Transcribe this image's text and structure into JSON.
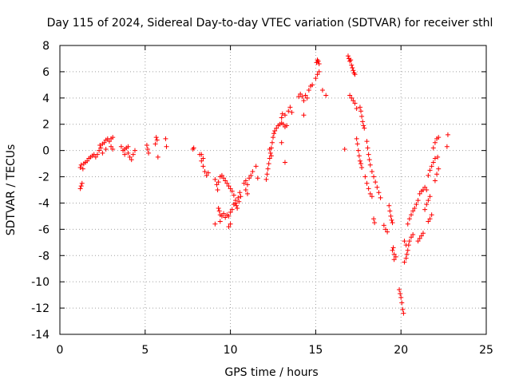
{
  "chart_data": {
    "type": "scatter",
    "title": "Day 115 of 2024, Sidereal Day-to-day VTEC variation (SDTVAR) for receiver sthl",
    "xlabel": "GPS time / hours",
    "ylabel": "SDTVAR / TECUs",
    "xlim": [
      0,
      25
    ],
    "ylim": [
      -14,
      8
    ],
    "xticks": [
      0,
      5,
      10,
      15,
      20,
      25
    ],
    "yticks": [
      -14,
      -12,
      -10,
      -8,
      -6,
      -4,
      -2,
      0,
      2,
      4,
      6,
      8
    ],
    "xtick_labels": [
      "0",
      "5",
      "10",
      "15",
      "20",
      "25"
    ],
    "ytick_labels": [
      "-14",
      "-12",
      "-10",
      "-8",
      "-6",
      "-4",
      "-2",
      "0",
      "2",
      "4",
      "6",
      "8"
    ],
    "grid": true,
    "marker": "+",
    "marker_color": "#ff0000",
    "series": [
      {
        "name": "SDTVAR",
        "points": [
          [
            1.2,
            -2.9
          ],
          [
            1.25,
            -2.7
          ],
          [
            1.3,
            -2.5
          ],
          [
            1.2,
            -1.3
          ],
          [
            1.25,
            -1.1
          ],
          [
            1.35,
            -1.4
          ],
          [
            1.4,
            -1.0
          ],
          [
            1.5,
            -0.9
          ],
          [
            1.6,
            -0.8
          ],
          [
            1.7,
            -0.6
          ],
          [
            1.8,
            -0.5
          ],
          [
            1.9,
            -0.4
          ],
          [
            2.0,
            -0.3
          ],
          [
            2.1,
            -0.5
          ],
          [
            2.2,
            -0.3
          ],
          [
            2.3,
            0.0
          ],
          [
            2.35,
            0.4
          ],
          [
            2.4,
            0.2
          ],
          [
            2.5,
            0.5
          ],
          [
            2.6,
            0.6
          ],
          [
            2.7,
            0.8
          ],
          [
            2.8,
            0.9
          ],
          [
            2.9,
            0.7
          ],
          [
            3.0,
            0.9
          ],
          [
            3.1,
            1.0
          ],
          [
            3.0,
            0.3
          ],
          [
            3.1,
            0.1
          ],
          [
            2.5,
            -0.2
          ],
          [
            2.7,
            0.1
          ],
          [
            3.6,
            0.3
          ],
          [
            3.7,
            0.0
          ],
          [
            3.8,
            -0.3
          ],
          [
            3.9,
            0.2
          ],
          [
            4.0,
            -0.2
          ],
          [
            4.1,
            -0.5
          ],
          [
            4.2,
            -0.7
          ],
          [
            4.3,
            -0.3
          ],
          [
            4.4,
            0.0
          ],
          [
            3.8,
            0.1
          ],
          [
            4.0,
            0.3
          ],
          [
            5.1,
            0.4
          ],
          [
            5.15,
            0.1
          ],
          [
            5.2,
            -0.2
          ],
          [
            5.6,
            0.5
          ],
          [
            5.65,
            1.0
          ],
          [
            5.7,
            0.8
          ],
          [
            5.75,
            -0.5
          ],
          [
            6.2,
            0.9
          ],
          [
            6.25,
            0.3
          ],
          [
            7.8,
            0.1
          ],
          [
            7.85,
            0.2
          ],
          [
            8.2,
            -0.3
          ],
          [
            8.3,
            -0.8
          ],
          [
            8.4,
            -1.2
          ],
          [
            8.5,
            -1.6
          ],
          [
            8.6,
            -1.9
          ],
          [
            8.7,
            -1.7
          ],
          [
            8.3,
            -0.3
          ],
          [
            8.4,
            -0.6
          ],
          [
            9.1,
            -2.2
          ],
          [
            9.2,
            -2.6
          ],
          [
            9.25,
            -3.0
          ],
          [
            9.3,
            -2.4
          ],
          [
            9.4,
            -2.0
          ],
          [
            9.5,
            -1.9
          ],
          [
            9.6,
            -2.1
          ],
          [
            9.7,
            -2.3
          ],
          [
            9.8,
            -2.5
          ],
          [
            9.9,
            -2.7
          ],
          [
            10.0,
            -2.9
          ],
          [
            10.1,
            -3.1
          ],
          [
            10.2,
            -3.4
          ],
          [
            10.3,
            -3.8
          ],
          [
            10.35,
            -4.2
          ],
          [
            10.4,
            -4.4
          ],
          [
            10.5,
            -3.9
          ],
          [
            10.6,
            -3.5
          ],
          [
            10.55,
            -3.2
          ],
          [
            10.45,
            -3.6
          ],
          [
            9.3,
            -4.4
          ],
          [
            9.35,
            -4.6
          ],
          [
            9.4,
            -4.9
          ],
          [
            9.5,
            -5.0
          ],
          [
            9.6,
            -4.8
          ],
          [
            9.7,
            -5.1
          ],
          [
            9.8,
            -4.9
          ],
          [
            9.9,
            -5.0
          ],
          [
            10.0,
            -4.7
          ],
          [
            10.1,
            -4.5
          ],
          [
            9.1,
            -5.6
          ],
          [
            9.4,
            -5.4
          ],
          [
            9.9,
            -5.8
          ],
          [
            10.0,
            -5.6
          ],
          [
            10.2,
            -4.1
          ],
          [
            10.3,
            -4.0
          ],
          [
            10.8,
            -2.5
          ],
          [
            10.9,
            -2.3
          ],
          [
            11.0,
            -2.6
          ],
          [
            11.1,
            -2.1
          ],
          [
            11.2,
            -1.9
          ],
          [
            11.3,
            -1.6
          ],
          [
            11.5,
            -1.2
          ],
          [
            11.6,
            -2.1
          ],
          [
            10.9,
            -3.0
          ],
          [
            11.0,
            -3.3
          ],
          [
            12.1,
            -2.2
          ],
          [
            12.15,
            -1.8
          ],
          [
            12.2,
            -1.4
          ],
          [
            12.25,
            -1.0
          ],
          [
            12.3,
            -0.6
          ],
          [
            12.35,
            -0.2
          ],
          [
            12.4,
            0.2
          ],
          [
            12.45,
            0.6
          ],
          [
            12.5,
            1.0
          ],
          [
            12.55,
            1.3
          ],
          [
            12.6,
            1.5
          ],
          [
            12.7,
            1.7
          ],
          [
            12.8,
            1.9
          ],
          [
            12.9,
            2.0
          ],
          [
            13.0,
            2.1
          ],
          [
            13.1,
            2.0
          ],
          [
            13.2,
            1.8
          ],
          [
            13.3,
            1.9
          ],
          [
            12.3,
            0.1
          ],
          [
            12.4,
            -0.4
          ],
          [
            13.0,
            2.5
          ],
          [
            13.05,
            2.8
          ],
          [
            13.2,
            2.7
          ],
          [
            13.4,
            3.0
          ],
          [
            13.5,
            3.3
          ],
          [
            13.6,
            2.9
          ],
          [
            13.2,
            -0.9
          ],
          [
            13.0,
            0.6
          ],
          [
            14.0,
            4.1
          ],
          [
            14.1,
            4.3
          ],
          [
            14.2,
            4.1
          ],
          [
            14.3,
            3.8
          ],
          [
            14.4,
            4.2
          ],
          [
            14.5,
            4.0
          ],
          [
            14.6,
            4.6
          ],
          [
            14.7,
            4.9
          ],
          [
            14.8,
            5.0
          ],
          [
            14.3,
            2.7
          ],
          [
            15.0,
            5.5
          ],
          [
            15.1,
            5.8
          ],
          [
            15.2,
            6.0
          ],
          [
            15.05,
            6.7
          ],
          [
            15.1,
            6.9
          ],
          [
            15.15,
            6.8
          ],
          [
            15.2,
            6.6
          ],
          [
            15.4,
            4.6
          ],
          [
            15.6,
            4.2
          ],
          [
            16.7,
            0.1
          ],
          [
            16.9,
            7.2
          ],
          [
            16.95,
            7.0
          ],
          [
            17.0,
            6.8
          ],
          [
            17.05,
            6.9
          ],
          [
            17.1,
            6.5
          ],
          [
            17.15,
            6.3
          ],
          [
            17.2,
            6.1
          ],
          [
            17.25,
            5.9
          ],
          [
            17.3,
            5.8
          ],
          [
            17.0,
            4.2
          ],
          [
            17.1,
            4.0
          ],
          [
            17.2,
            3.8
          ],
          [
            17.3,
            3.6
          ],
          [
            17.4,
            3.2
          ],
          [
            17.6,
            3.3
          ],
          [
            17.65,
            3.0
          ],
          [
            17.7,
            2.6
          ],
          [
            17.75,
            2.2
          ],
          [
            17.8,
            1.9
          ],
          [
            17.85,
            1.7
          ],
          [
            17.4,
            0.9
          ],
          [
            17.45,
            0.5
          ],
          [
            17.5,
            0.0
          ],
          [
            17.55,
            -0.4
          ],
          [
            17.6,
            -0.8
          ],
          [
            17.65,
            -1.0
          ],
          [
            17.7,
            -1.3
          ],
          [
            18.0,
            0.7
          ],
          [
            18.05,
            0.2
          ],
          [
            18.1,
            -0.3
          ],
          [
            18.15,
            -0.7
          ],
          [
            18.2,
            -1.1
          ],
          [
            18.3,
            -1.6
          ],
          [
            18.4,
            -2.0
          ],
          [
            18.5,
            -2.4
          ],
          [
            18.6,
            -2.8
          ],
          [
            18.7,
            -3.2
          ],
          [
            18.8,
            -3.6
          ],
          [
            17.9,
            -2.0
          ],
          [
            18.0,
            -2.5
          ],
          [
            18.1,
            -2.9
          ],
          [
            18.2,
            -3.3
          ],
          [
            18.3,
            -3.5
          ],
          [
            18.4,
            -5.2
          ],
          [
            18.45,
            -5.5
          ],
          [
            19.3,
            -4.2
          ],
          [
            19.35,
            -4.6
          ],
          [
            19.4,
            -5.0
          ],
          [
            19.45,
            -5.3
          ],
          [
            19.5,
            -5.5
          ],
          [
            19.0,
            -5.7
          ],
          [
            19.1,
            -6.0
          ],
          [
            19.2,
            -6.2
          ],
          [
            19.5,
            -7.6
          ],
          [
            19.6,
            -7.9
          ],
          [
            19.7,
            -8.1
          ],
          [
            19.6,
            -8.3
          ],
          [
            19.55,
            -7.4
          ],
          [
            19.9,
            -10.6
          ],
          [
            19.95,
            -10.9
          ],
          [
            20.0,
            -11.2
          ],
          [
            20.05,
            -11.6
          ],
          [
            20.1,
            -12.1
          ],
          [
            20.15,
            -12.4
          ],
          [
            20.2,
            -8.5
          ],
          [
            20.3,
            -8.2
          ],
          [
            20.35,
            -7.9
          ],
          [
            20.4,
            -7.6
          ],
          [
            20.45,
            -7.2
          ],
          [
            20.5,
            -6.9
          ],
          [
            20.6,
            -6.6
          ],
          [
            20.7,
            -6.4
          ],
          [
            20.2,
            -6.9
          ],
          [
            20.3,
            -7.2
          ],
          [
            20.4,
            -5.6
          ],
          [
            20.5,
            -5.2
          ],
          [
            20.6,
            -4.9
          ],
          [
            20.7,
            -4.6
          ],
          [
            20.8,
            -4.4
          ],
          [
            20.9,
            -4.1
          ],
          [
            21.0,
            -3.8
          ],
          [
            21.1,
            -3.3
          ],
          [
            21.2,
            -3.1
          ],
          [
            21.3,
            -3.0
          ],
          [
            21.0,
            -6.9
          ],
          [
            21.1,
            -6.7
          ],
          [
            21.2,
            -6.5
          ],
          [
            21.3,
            -6.3
          ],
          [
            21.4,
            -4.5
          ],
          [
            21.5,
            -4.1
          ],
          [
            21.6,
            -3.8
          ],
          [
            21.7,
            -3.5
          ],
          [
            21.5,
            -3.0
          ],
          [
            21.4,
            -2.8
          ],
          [
            21.6,
            -5.4
          ],
          [
            21.7,
            -5.2
          ],
          [
            21.8,
            -4.9
          ],
          [
            21.6,
            -1.9
          ],
          [
            21.7,
            -1.5
          ],
          [
            21.8,
            -1.2
          ],
          [
            21.9,
            -0.9
          ],
          [
            22.0,
            -0.6
          ],
          [
            22.0,
            -2.3
          ],
          [
            22.1,
            -1.8
          ],
          [
            21.9,
            0.2
          ],
          [
            22.0,
            0.6
          ],
          [
            22.1,
            0.9
          ],
          [
            22.2,
            1.0
          ],
          [
            22.15,
            -0.5
          ],
          [
            22.2,
            -1.4
          ],
          [
            22.7,
            0.3
          ],
          [
            22.75,
            1.2
          ]
        ]
      }
    ]
  }
}
